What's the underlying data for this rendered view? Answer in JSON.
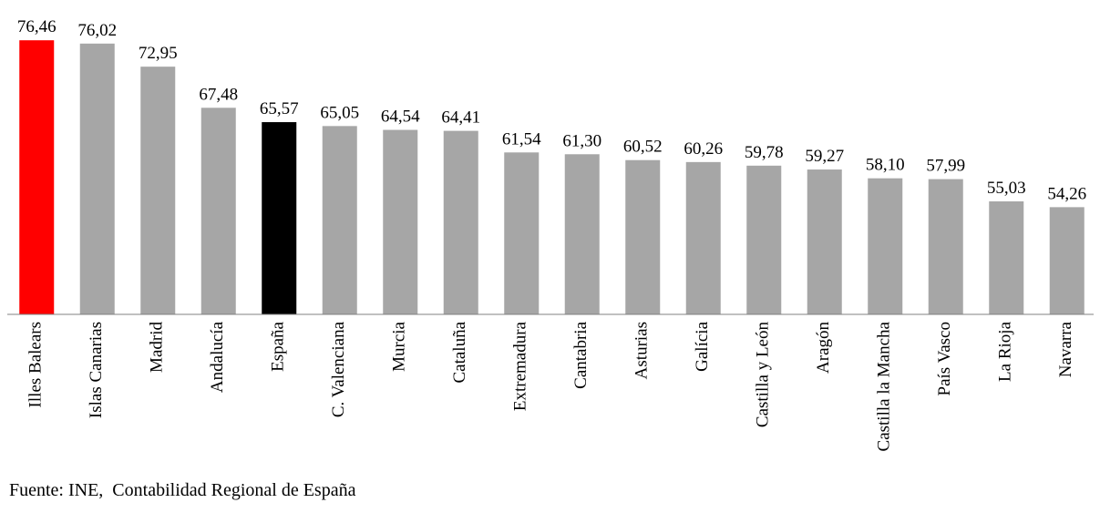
{
  "chart_data": {
    "type": "bar",
    "categories": [
      "Illes Balears",
      "Islas Canarias",
      "Madrid",
      "Andalucía",
      "España",
      "C. Valenciana",
      "Murcia",
      "Cataluña",
      "Extremadura",
      "Cantabria",
      "Asturias",
      "Galícia",
      "Castilla y León",
      "Aragón",
      "Castilla la Mancha",
      "País Vasco",
      "La Rioja",
      "Navarra"
    ],
    "values": [
      76.46,
      76.02,
      72.95,
      67.48,
      65.57,
      65.05,
      64.54,
      64.41,
      61.54,
      61.3,
      60.52,
      60.26,
      59.78,
      59.27,
      58.1,
      57.99,
      55.03,
      54.26
    ],
    "value_labels": [
      "76,46",
      "76,02",
      "72,95",
      "67,48",
      "65,57",
      "65,05",
      "64,54",
      "64,41",
      "61,54",
      "61,30",
      "60,52",
      "60,26",
      "59,78",
      "59,27",
      "58,10",
      "57,99",
      "55,03",
      "54,26"
    ],
    "colors": [
      "#ff0000",
      "#a6a6a6",
      "#a6a6a6",
      "#a6a6a6",
      "#000000",
      "#a6a6a6",
      "#a6a6a6",
      "#a6a6a6",
      "#a6a6a6",
      "#a6a6a6",
      "#a6a6a6",
      "#a6a6a6",
      "#a6a6a6",
      "#a6a6a6",
      "#a6a6a6",
      "#a6a6a6",
      "#a6a6a6",
      "#a6a6a6"
    ],
    "ylim": [
      40,
      80
    ],
    "source": "Fuente: INE,  Contabilidad Regional de España"
  }
}
